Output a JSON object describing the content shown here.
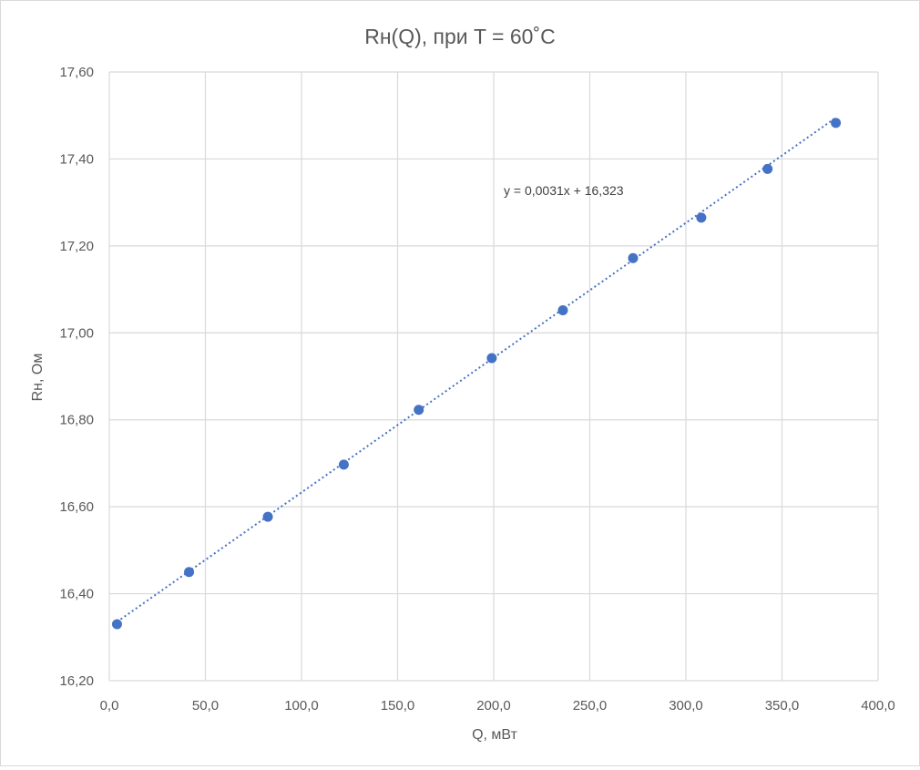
{
  "chart_data": {
    "type": "scatter",
    "title": "Rн(Q), при T = 60˚C",
    "xlabel": "Q, мВт",
    "ylabel": "Rн, Ом",
    "xlim": [
      0,
      400
    ],
    "ylim": [
      16.2,
      17.6
    ],
    "x_ticks": [
      0,
      50,
      100,
      150,
      200,
      250,
      300,
      350,
      400
    ],
    "x_tick_labels": [
      "0,0",
      "50,0",
      "100,0",
      "150,0",
      "200,0",
      "250,0",
      "300,0",
      "350,0",
      "400,0"
    ],
    "y_ticks": [
      16.2,
      16.4,
      16.6,
      16.8,
      17.0,
      17.2,
      17.4,
      17.6
    ],
    "y_tick_labels": [
      "16,20",
      "16,40",
      "16,60",
      "16,80",
      "17,00",
      "17,20",
      "17,40",
      "17,60"
    ],
    "grid": true,
    "legend": "none",
    "series": [
      {
        "x": [
          4,
          41.5,
          82.5,
          122,
          161,
          199,
          236,
          272.5,
          308,
          342.5,
          378
        ],
        "y": [
          16.33,
          16.45,
          16.577,
          16.697,
          16.823,
          16.942,
          17.052,
          17.172,
          17.265,
          17.377,
          17.483
        ],
        "color": "#4472c4"
      }
    ],
    "trendline": {
      "type": "linear",
      "slope": 0.0031,
      "intercept": 16.323,
      "x_range": [
        4,
        378
      ],
      "style": "dotted",
      "color": "#4472c4",
      "equation_label": "y = 0,0031x + 16,323"
    }
  }
}
